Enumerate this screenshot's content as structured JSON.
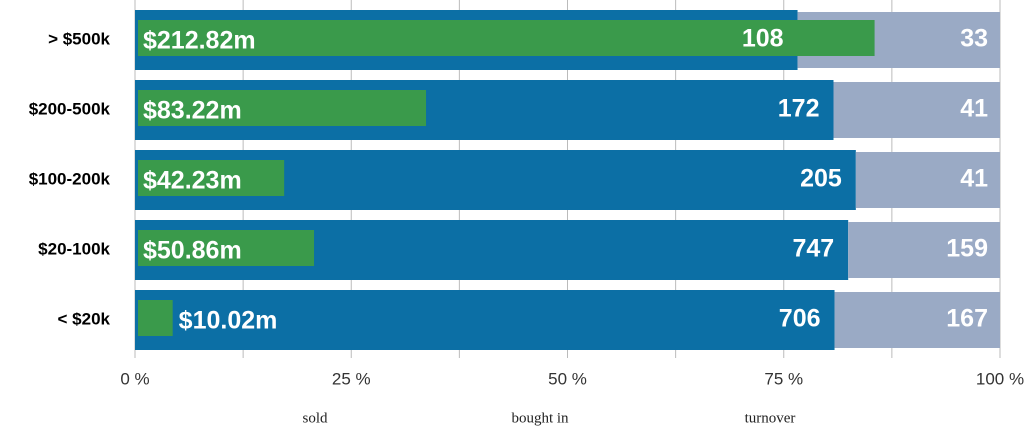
{
  "chart_data": {
    "type": "bar",
    "orientation": "horizontal",
    "stacking": "percent",
    "categories": [
      "> $500k",
      "$200-500k",
      "$100-200k",
      "$20-100k",
      "< $20k"
    ],
    "series": [
      {
        "name": "sold",
        "color": "#0c6fa5",
        "values": [
          108,
          172,
          205,
          747,
          706
        ]
      },
      {
        "name": "bought in",
        "color": "#9aaac5",
        "values": [
          33,
          41,
          41,
          159,
          167
        ]
      },
      {
        "name": "turnover",
        "color": "#3a9a4b",
        "values": [
          212.82,
          83.22,
          42.23,
          50.86,
          10.02
        ],
        "value_labels": [
          "$212.82m",
          "$83.22m",
          "$42.23m",
          "$50.86m",
          "$10.02m"
        ]
      }
    ],
    "xlim": [
      0,
      100
    ],
    "xticks": [
      {
        "value": 0,
        "label": "0 %"
      },
      {
        "value": 25,
        "label": "25 %"
      },
      {
        "value": 50,
        "label": "50 %"
      },
      {
        "value": 75,
        "label": "75 %"
      },
      {
        "value": 100,
        "label": "100 %"
      }
    ],
    "minor_xticks": [
      12.5,
      37.5,
      62.5,
      87.5
    ],
    "grid": true
  }
}
